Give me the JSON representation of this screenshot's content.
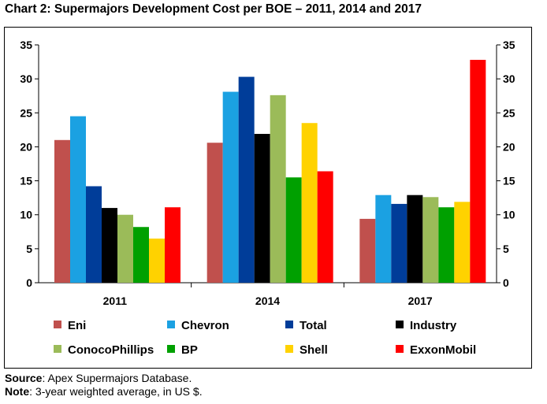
{
  "title": "Chart 2: Supermajors Development Cost per BOE – 2011, 2014 and 2017",
  "footer": {
    "source_label": "Source",
    "source_text": ":  Apex Supermajors Database.",
    "note_label": "Note",
    "note_text": ": 3-year weighted average, in US $."
  },
  "chart_data": {
    "type": "bar",
    "categories": [
      "2011",
      "2014",
      "2017"
    ],
    "ylim": [
      0,
      35
    ],
    "yticks": [
      0,
      5,
      10,
      15,
      20,
      25,
      30,
      35
    ],
    "grid": false,
    "legend_position": "bottom",
    "series": [
      {
        "name": "Eni",
        "color": "#C0504D",
        "values": [
          21.0,
          20.6,
          9.4
        ]
      },
      {
        "name": "Chevron",
        "color": "#1BA1E2",
        "values": [
          24.5,
          28.1,
          12.9
        ]
      },
      {
        "name": "Total",
        "color": "#003D99",
        "values": [
          14.2,
          30.3,
          11.6
        ]
      },
      {
        "name": "Industry",
        "color": "#000000",
        "values": [
          11.0,
          21.9,
          12.9
        ]
      },
      {
        "name": "ConocoPhillips",
        "color": "#9BBB59",
        "values": [
          10.0,
          27.6,
          12.6
        ]
      },
      {
        "name": "BP",
        "color": "#00A000",
        "values": [
          8.2,
          15.5,
          11.1
        ]
      },
      {
        "name": "Shell",
        "color": "#FFD200",
        "values": [
          6.5,
          23.5,
          11.9
        ]
      },
      {
        "name": "ExxonMobil",
        "color": "#FF0000",
        "values": [
          11.1,
          16.4,
          32.8
        ]
      }
    ]
  }
}
